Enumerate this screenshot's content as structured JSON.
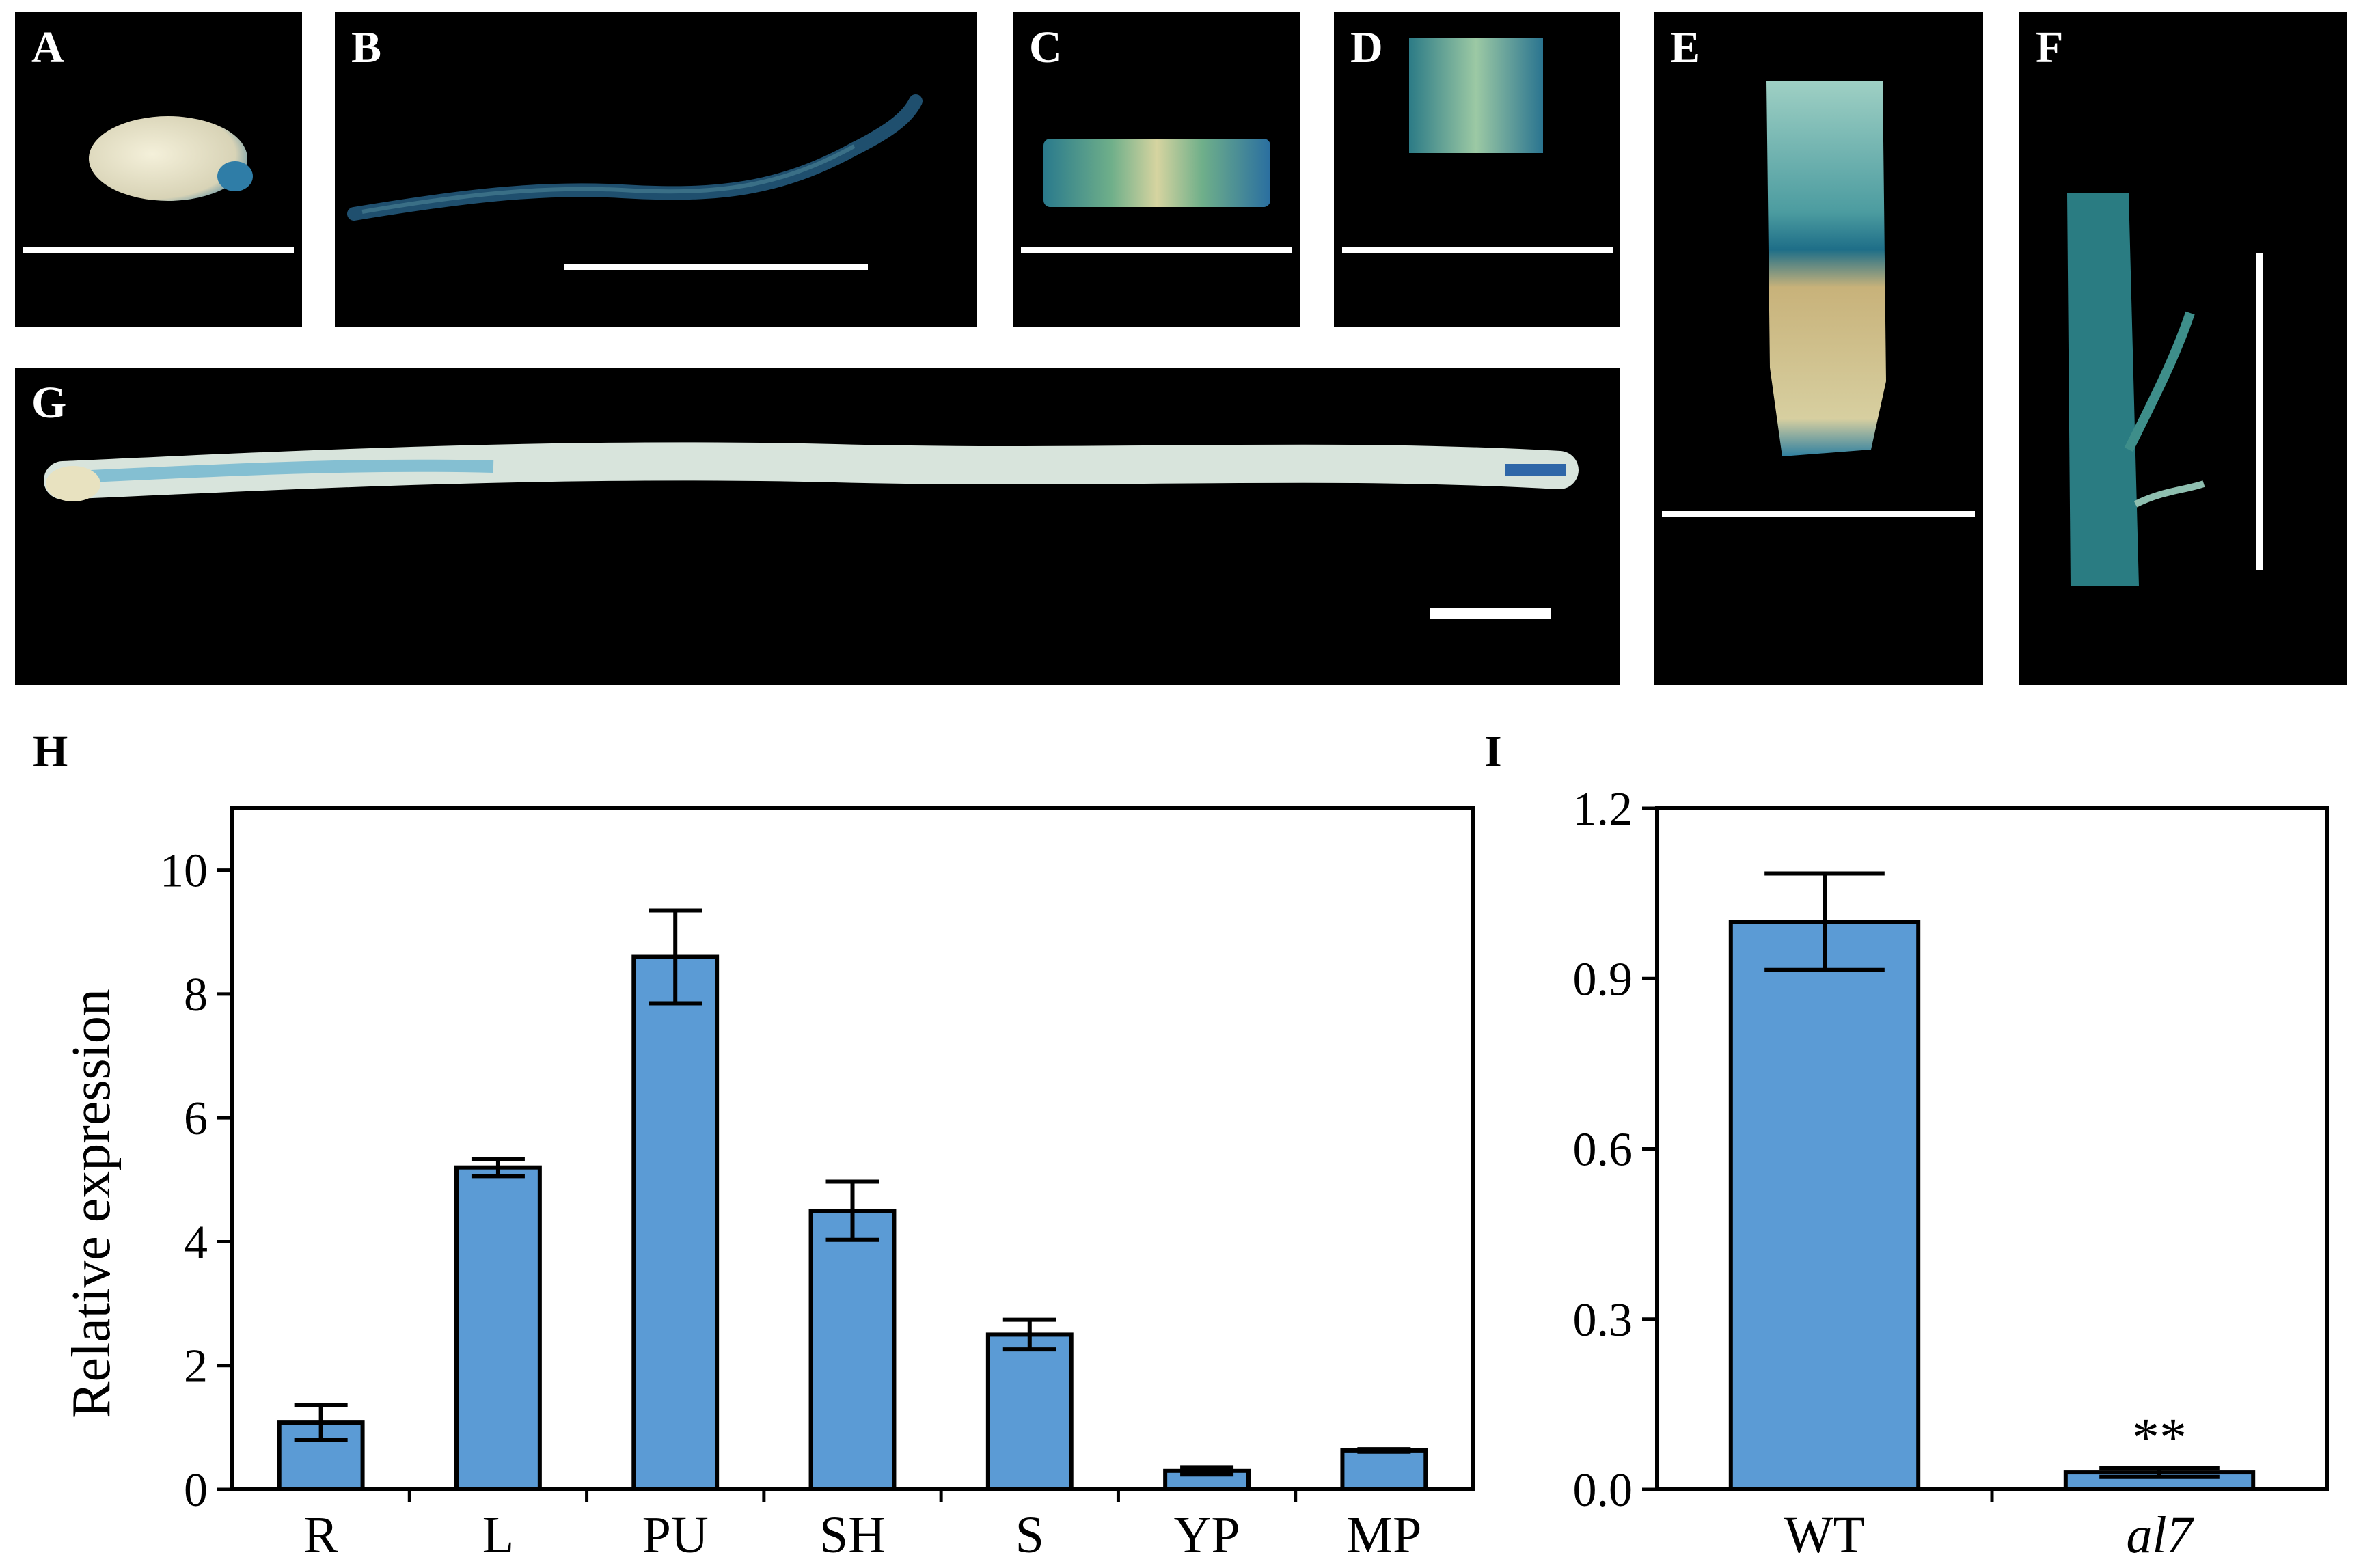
{
  "panels": {
    "A": {
      "label": "A"
    },
    "B": {
      "label": "B"
    },
    "C": {
      "label": "C"
    },
    "D": {
      "label": "D"
    },
    "E": {
      "label": "E"
    },
    "F": {
      "label": "F"
    },
    "G": {
      "label": "G"
    }
  },
  "colors": {
    "bar_fill": "#5B9BD5",
    "panel_bg": "#000000",
    "gus_blue": "#2E7FA8",
    "tissue_white": "#DDE6E0"
  },
  "chart_data": [
    {
      "id": "H",
      "panel_label": "H",
      "type": "bar",
      "ylabel": "Relative expression",
      "categories": [
        "R",
        "L",
        "PU",
        "SH",
        "S",
        "YP",
        "MP"
      ],
      "values": [
        1.08,
        5.2,
        8.6,
        4.5,
        2.5,
        0.3,
        0.63
      ],
      "errors": [
        0.28,
        0.14,
        0.75,
        0.47,
        0.24,
        0.06,
        0.02
      ],
      "yticks": [
        "0",
        "2",
        "4",
        "6",
        "8",
        "10"
      ],
      "ylim": [
        0,
        11
      ]
    },
    {
      "id": "I",
      "panel_label": "I",
      "type": "bar",
      "ylabel": "",
      "categories": [
        "WT",
        "al7"
      ],
      "values": [
        1.0,
        0.03
      ],
      "errors": [
        0.085,
        0.008
      ],
      "annotations": [
        "",
        "**"
      ],
      "yticks": [
        "0.0",
        "0.3",
        "0.6",
        "0.9",
        "1.2"
      ],
      "ylim": [
        0,
        1.2
      ]
    }
  ]
}
